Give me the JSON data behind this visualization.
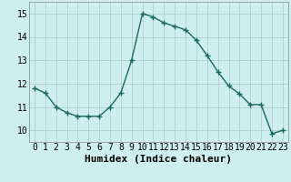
{
  "x": [
    0,
    1,
    2,
    3,
    4,
    5,
    6,
    7,
    8,
    9,
    10,
    11,
    12,
    13,
    14,
    15,
    16,
    17,
    18,
    19,
    20,
    21,
    22,
    23
  ],
  "y": [
    11.8,
    11.6,
    11.0,
    10.75,
    10.6,
    10.6,
    10.6,
    11.0,
    11.6,
    13.0,
    15.0,
    14.85,
    14.6,
    14.45,
    14.3,
    13.85,
    13.2,
    12.5,
    11.9,
    11.55,
    11.1,
    11.1,
    9.85,
    10.0
  ],
  "xlabel": "Humidex (Indice chaleur)",
  "xlim": [
    -0.5,
    23.5
  ],
  "ylim": [
    9.5,
    15.5
  ],
  "yticks": [
    10,
    11,
    12,
    13,
    14,
    15
  ],
  "xticks": [
    0,
    1,
    2,
    3,
    4,
    5,
    6,
    7,
    8,
    9,
    10,
    11,
    12,
    13,
    14,
    15,
    16,
    17,
    18,
    19,
    20,
    21,
    22,
    23
  ],
  "line_color": "#1a6b5e",
  "marker": "+",
  "bg_color": "#ceeef0",
  "grid_color": "#b0d0d0",
  "label_fontsize": 8,
  "tick_fontsize": 7,
  "line_width": 1.0,
  "marker_size": 4
}
